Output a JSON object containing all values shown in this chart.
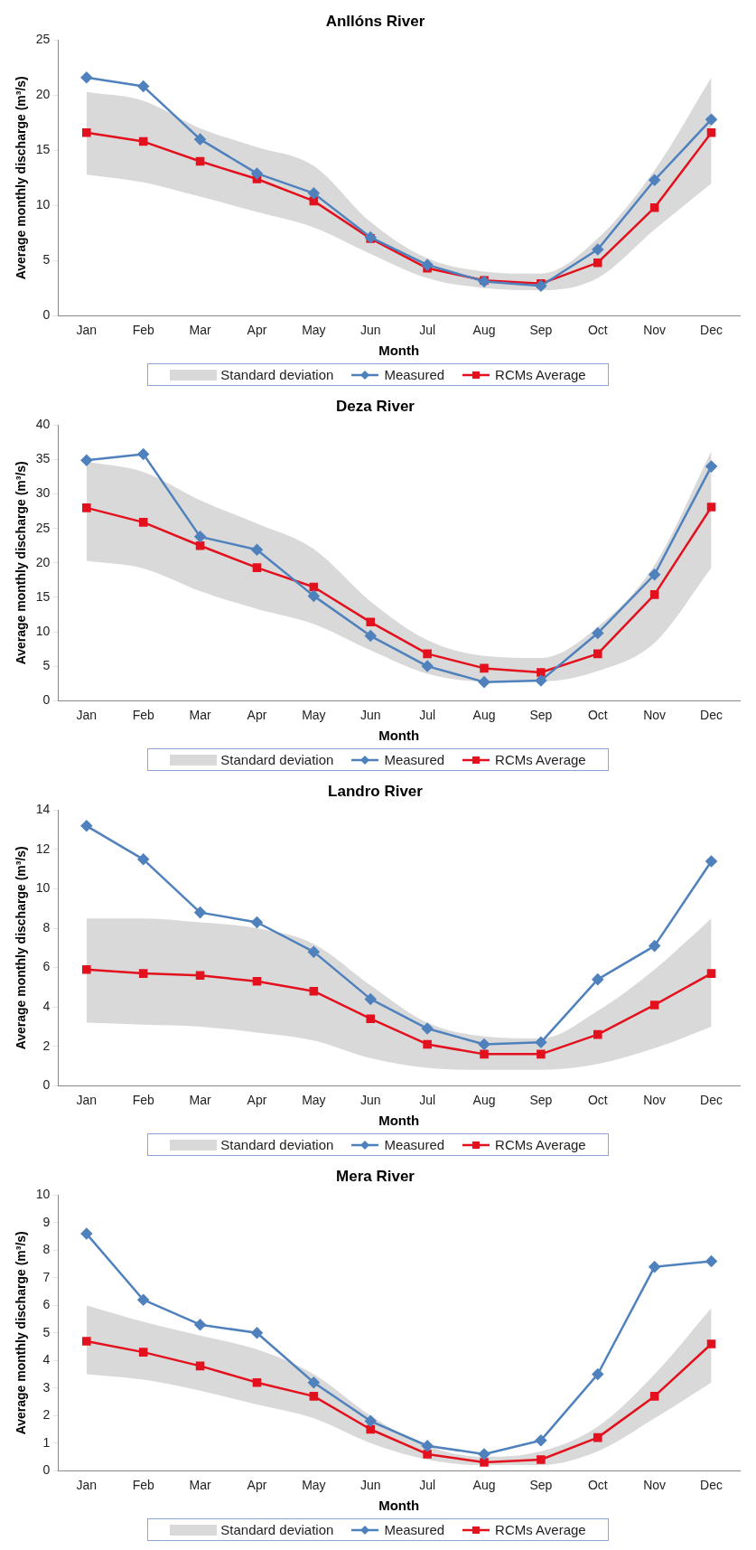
{
  "chart_data": [
    {
      "type": "line",
      "title": "Anllóns River",
      "xlabel": "Month",
      "ylabel": "Average monthly discharge (m³/s)",
      "categories": [
        "Jan",
        "Feb",
        "Mar",
        "Apr",
        "May",
        "Jun",
        "Jul",
        "Aug",
        "Sep",
        "Oct",
        "Nov",
        "Dec"
      ],
      "ylim": [
        0,
        25
      ],
      "yticks": [
        0,
        5,
        10,
        15,
        20,
        25
      ],
      "legend": "bottom",
      "annotations": [
        "Standard deviation"
      ],
      "series": [
        {
          "name": "Measured",
          "color": "#4f81bd",
          "marker": "diamond",
          "values": [
            21.6,
            20.8,
            16.0,
            12.9,
            11.1,
            7.1,
            4.6,
            3.1,
            2.7,
            6.0,
            12.3,
            17.8
          ]
        },
        {
          "name": "RCMs Average",
          "color": "#e3101e",
          "marker": "square",
          "values": [
            16.6,
            15.8,
            14.0,
            12.4,
            10.4,
            7.0,
            4.3,
            3.2,
            2.9,
            4.8,
            9.8,
            16.6
          ],
          "lower": [
            12.8,
            12.1,
            10.8,
            9.4,
            8.0,
            5.6,
            3.4,
            2.5,
            2.3,
            3.4,
            7.8,
            12.0
          ],
          "upper": [
            20.3,
            19.5,
            17.0,
            15.3,
            13.6,
            8.5,
            5.2,
            4.0,
            3.8,
            7.0,
            13.2,
            21.6
          ]
        }
      ]
    },
    {
      "type": "line",
      "title": "Deza River",
      "xlabel": "Month",
      "ylabel": "Average monthly discharge (m³/s)",
      "categories": [
        "Jan",
        "Feb",
        "Mar",
        "Apr",
        "May",
        "Jun",
        "Jul",
        "Aug",
        "Sep",
        "Oct",
        "Nov",
        "Dec"
      ],
      "ylim": [
        0,
        40
      ],
      "yticks": [
        0,
        5,
        10,
        15,
        20,
        25,
        30,
        35,
        40
      ],
      "legend": "bottom",
      "annotations": [
        "Standard deviation"
      ],
      "series": [
        {
          "name": "Measured",
          "color": "#4f81bd",
          "marker": "diamond",
          "values": [
            34.9,
            35.8,
            23.8,
            21.9,
            15.2,
            9.4,
            5.0,
            2.7,
            2.9,
            9.8,
            18.3,
            34.0
          ]
        },
        {
          "name": "RCMs Average",
          "color": "#e3101e",
          "marker": "square",
          "values": [
            28.0,
            25.9,
            22.5,
            19.3,
            16.5,
            11.4,
            6.8,
            4.7,
            4.1,
            6.8,
            15.4,
            28.1
          ],
          "lower": [
            20.3,
            19.2,
            15.9,
            13.3,
            11.1,
            7.3,
            3.9,
            2.8,
            2.8,
            4.3,
            8.4,
            19.3
          ],
          "upper": [
            34.7,
            33.2,
            29.1,
            25.7,
            22.0,
            14.4,
            8.8,
            6.5,
            6.2,
            10.7,
            19.7,
            36.2
          ]
        }
      ]
    },
    {
      "type": "line",
      "title": "Landro River",
      "xlabel": "Month",
      "ylabel": "Average monthly discharge (m³/s)",
      "categories": [
        "Jan",
        "Feb",
        "Mar",
        "Apr",
        "May",
        "Jun",
        "Jul",
        "Aug",
        "Sep",
        "Oct",
        "Nov",
        "Dec"
      ],
      "ylim": [
        0,
        14
      ],
      "yticks": [
        0,
        2,
        4,
        6,
        8,
        10,
        12,
        14
      ],
      "legend": "bottom",
      "annotations": [
        "Standard deviation"
      ],
      "series": [
        {
          "name": "Measured",
          "color": "#4f81bd",
          "marker": "diamond",
          "values": [
            13.2,
            11.5,
            8.8,
            8.3,
            6.8,
            4.4,
            2.9,
            2.1,
            2.2,
            5.4,
            7.1,
            11.4
          ]
        },
        {
          "name": "RCMs Average",
          "color": "#e3101e",
          "marker": "square",
          "values": [
            5.9,
            5.7,
            5.6,
            5.3,
            4.8,
            3.4,
            2.1,
            1.6,
            1.6,
            2.6,
            4.1,
            5.7
          ],
          "lower": [
            3.2,
            3.1,
            3.0,
            2.7,
            2.3,
            1.4,
            0.9,
            0.8,
            0.8,
            1.1,
            1.9,
            3.0
          ],
          "upper": [
            8.5,
            8.5,
            8.3,
            8.0,
            7.2,
            5.1,
            3.2,
            2.5,
            2.4,
            3.8,
            5.9,
            8.5
          ]
        }
      ]
    },
    {
      "type": "line",
      "title": "Mera River",
      "xlabel": "Month",
      "ylabel": "Average monthly discharge (m³/s)",
      "categories": [
        "Jan",
        "Feb",
        "Mar",
        "Apr",
        "May",
        "Jun",
        "Jul",
        "Aug",
        "Sep",
        "Oct",
        "Nov",
        "Dec"
      ],
      "ylim": [
        0,
        10
      ],
      "yticks": [
        0,
        1,
        2,
        3,
        4,
        5,
        6,
        7,
        8,
        9,
        10
      ],
      "legend": "bottom",
      "annotations": [
        "Standard deviation"
      ],
      "series": [
        {
          "name": "Measured",
          "color": "#4f81bd",
          "marker": "diamond",
          "values": [
            8.6,
            6.2,
            5.3,
            5.0,
            3.2,
            1.8,
            0.9,
            0.6,
            1.1,
            3.5,
            7.4,
            7.6
          ]
        },
        {
          "name": "RCMs Average",
          "color": "#e3101e",
          "marker": "square",
          "values": [
            4.7,
            4.3,
            3.8,
            3.2,
            2.7,
            1.5,
            0.6,
            0.3,
            0.4,
            1.2,
            2.7,
            4.6
          ],
          "lower": [
            3.5,
            3.3,
            2.9,
            2.4,
            1.9,
            1.0,
            0.4,
            0.2,
            0.2,
            0.7,
            1.9,
            3.2
          ],
          "upper": [
            6.0,
            5.4,
            4.9,
            4.4,
            3.5,
            2.0,
            0.9,
            0.5,
            0.7,
            1.6,
            3.5,
            5.9
          ]
        }
      ]
    }
  ]
}
